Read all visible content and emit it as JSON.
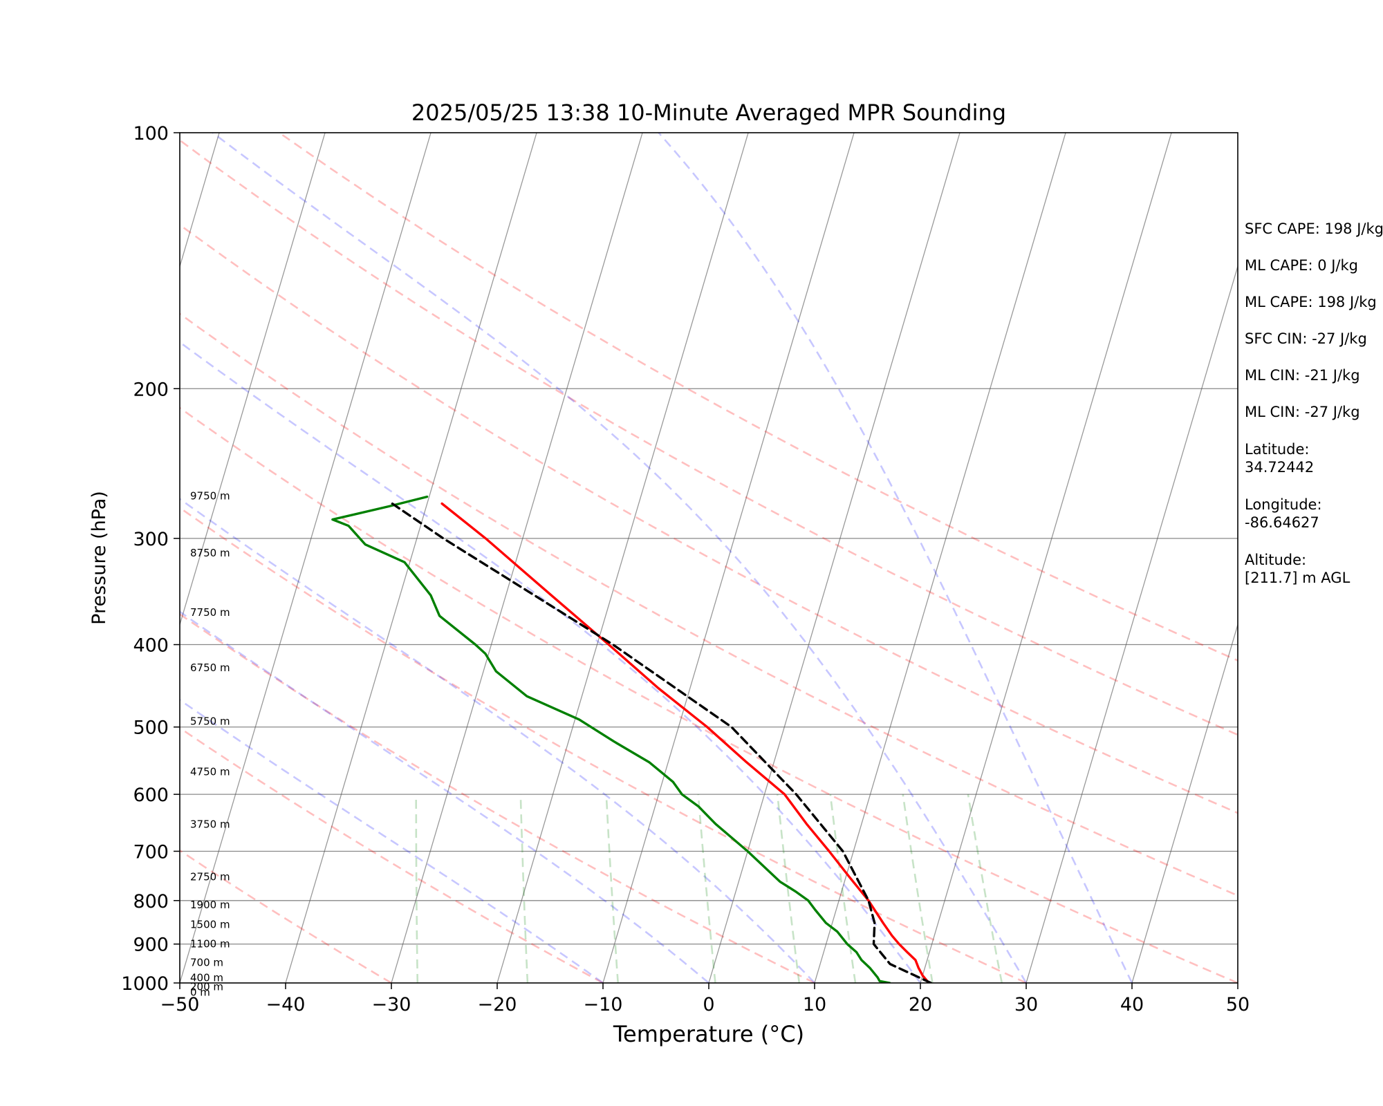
{
  "chart_data": {
    "type": "line",
    "title": "2025/05/25 13:38 10-Minute Averaged MPR Sounding",
    "xlabel": "Temperature (°C)",
    "ylabel": "Pressure (hPa)",
    "xlim": [
      -50,
      50
    ],
    "ylim": [
      1000,
      100
    ],
    "y_scale": "log",
    "skew": "skew-T log-P",
    "grid": true,
    "x_ticks": [
      "−50",
      "−40",
      "−30",
      "−20",
      "−10",
      "0",
      "10",
      "20",
      "30",
      "40",
      "50"
    ],
    "y_ticks": [
      "100",
      "200",
      "300",
      "400",
      "500",
      "600",
      "700",
      "800",
      "900",
      "1000"
    ],
    "series": [
      {
        "color": "#ff0000",
        "style": "solid",
        "points": [
          {
            "p": 1000,
            "t": 20.8
          },
          {
            "p": 980,
            "t": 20.0
          },
          {
            "p": 960,
            "t": 19.4
          },
          {
            "p": 940,
            "t": 18.9
          },
          {
            "p": 920,
            "t": 17.9
          },
          {
            "p": 900,
            "t": 16.9
          },
          {
            "p": 880,
            "t": 16.0
          },
          {
            "p": 850,
            "t": 14.8
          },
          {
            "p": 800,
            "t": 12.8
          },
          {
            "p": 750,
            "t": 10.3
          },
          {
            "p": 700,
            "t": 7.7
          },
          {
            "p": 650,
            "t": 4.8
          },
          {
            "p": 600,
            "t": 1.9
          },
          {
            "p": 550,
            "t": -2.6
          },
          {
            "p": 500,
            "t": -7.3
          },
          {
            "p": 450,
            "t": -13.0
          },
          {
            "p": 400,
            "t": -18.9
          },
          {
            "p": 350,
            "t": -25.7
          },
          {
            "p": 300,
            "t": -33.5
          },
          {
            "p": 273,
            "t": -38.6
          }
        ]
      },
      {
        "color": "#008000",
        "style": "solid",
        "points": [
          {
            "p": 1000,
            "t": 17.1
          },
          {
            "p": 995,
            "t": 16.1
          },
          {
            "p": 985,
            "t": 15.8
          },
          {
            "p": 960,
            "t": 14.8
          },
          {
            "p": 940,
            "t": 13.8
          },
          {
            "p": 920,
            "t": 13.1
          },
          {
            "p": 900,
            "t": 12.0
          },
          {
            "p": 870,
            "t": 10.7
          },
          {
            "p": 850,
            "t": 9.4
          },
          {
            "p": 820,
            "t": 8.0
          },
          {
            "p": 800,
            "t": 7.1
          },
          {
            "p": 780,
            "t": 5.6
          },
          {
            "p": 760,
            "t": 3.9
          },
          {
            "p": 700,
            "t": 0.0
          },
          {
            "p": 650,
            "t": -3.8
          },
          {
            "p": 620,
            "t": -5.9
          },
          {
            "p": 600,
            "t": -7.8
          },
          {
            "p": 580,
            "t": -9.0
          },
          {
            "p": 550,
            "t": -11.8
          },
          {
            "p": 520,
            "t": -15.7
          },
          {
            "p": 490,
            "t": -19.6
          },
          {
            "p": 460,
            "t": -25.2
          },
          {
            "p": 430,
            "t": -28.8
          },
          {
            "p": 410,
            "t": -30.3
          },
          {
            "p": 400,
            "t": -31.5
          },
          {
            "p": 370,
            "t": -35.7
          },
          {
            "p": 350,
            "t": -37.1
          },
          {
            "p": 320,
            "t": -40.5
          },
          {
            "p": 305,
            "t": -44.7
          },
          {
            "p": 290,
            "t": -46.8
          },
          {
            "p": 285,
            "t": -48.5
          },
          {
            "p": 275,
            "t": -43.5
          },
          {
            "p": 268,
            "t": -40.2
          }
        ]
      },
      {
        "color": "#000000",
        "style": "dashed",
        "points": [
          {
            "p": 1000,
            "t": 21.0
          },
          {
            "p": 960,
            "t": 17.5
          },
          {
            "p": 950,
            "t": 16.6
          },
          {
            "p": 900,
            "t": 14.5
          },
          {
            "p": 850,
            "t": 14.0
          },
          {
            "p": 800,
            "t": 12.8
          },
          {
            "p": 700,
            "t": 9.0
          },
          {
            "p": 600,
            "t": 3.0
          },
          {
            "p": 500,
            "t": -5.0
          },
          {
            "p": 400,
            "t": -18.5
          },
          {
            "p": 350,
            "t": -27.3
          },
          {
            "p": 300,
            "t": -37.5
          },
          {
            "p": 273,
            "t": -43.3
          }
        ]
      }
    ],
    "height_labels": [
      "9750 m",
      "8750 m",
      "7750 m",
      "6750 m",
      "5750 m",
      "4750 m",
      "3750 m",
      "2750 m",
      "1900 m",
      "1500 m",
      "1100 m",
      "700 m",
      "400 m",
      "200 m",
      "0 m"
    ],
    "height_pressures": [
      270,
      315,
      370,
      430,
      497,
      570,
      657,
      757,
      817,
      862,
      908,
      955,
      995,
      1020,
      1035
    ],
    "dry_adiabats": [
      -30,
      -10,
      10,
      30,
      50,
      70,
      90,
      110,
      130
    ],
    "moist_adiabats": [
      -10,
      0,
      10,
      20,
      30,
      40
    ],
    "mixing_ratios": [
      0.4,
      1,
      2,
      4,
      7,
      10,
      16,
      24
    ],
    "colors": {
      "temperature": "#ff0000",
      "dewpoint": "#008000",
      "parcel": "#000000",
      "dry_adiabat": "#ff0000",
      "moist_adiabat": "#0000ff",
      "mixing_ratio": "#008000",
      "isotherm": "#555555",
      "isobar": "#888888"
    }
  },
  "info_panel": {
    "sfc_cape": "SFC CAPE: 198 J/kg",
    "ml_cape_1": "ML CAPE: 0 J/kg",
    "ml_cape_2": "ML CAPE: 198 J/kg",
    "sfc_cin": "SFC CIN: -27 J/kg",
    "ml_cin_1": "ML CIN: -21 J/kg",
    "ml_cin_2": "ML CIN: -27 J/kg",
    "latitude_label": "Latitude:",
    "latitude_value": "34.72442",
    "longitude_label": "Longitude:",
    "longitude_value": "-86.64627",
    "altitude_label": "Altitude:",
    "altitude_value": "[211.7] m AGL"
  }
}
